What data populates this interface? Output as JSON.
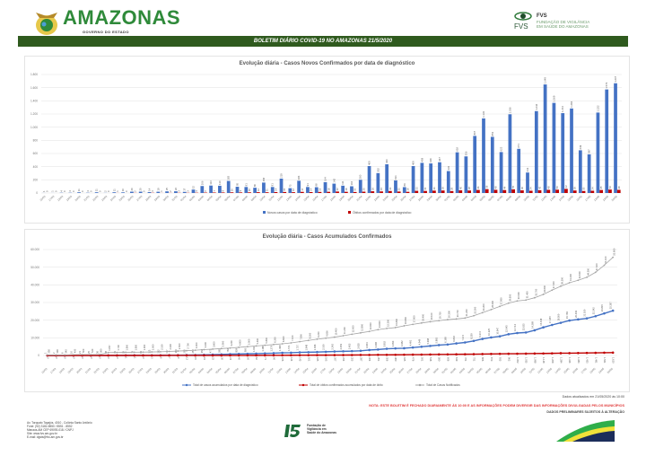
{
  "header": {
    "brand": "AMAZONAS",
    "brand_subtitle": "GOVERNO DO ESTADO",
    "fvs_name": "FVS",
    "fvs_line1": "FUNDAÇÃO DE VIGILÂNCIA",
    "fvs_line2": "EM SAÚDE DO AMAZONAS",
    "fvs_mark": "FVS",
    "banner": "BOLETIM DIÁRIO COVID-19 NO AMAZONAS 21/5/2020"
  },
  "colors": {
    "banner": "#2f5a1e",
    "cases": "#4472c4",
    "deaths": "#c00000",
    "notified": "#a5a5a5",
    "brand": "#2f8a3a",
    "note": "#e03a3a"
  },
  "chart_data": [
    {
      "type": "bar",
      "title": "Evolução diária - Casos Novos Confirmados por data de diagnóstico",
      "ylim": [
        0,
        1800
      ],
      "yticks": [
        0,
        200,
        400,
        600,
        800,
        1000,
        1200,
        1400,
        1600,
        1800
      ],
      "grid": true,
      "legend_position": "bottom",
      "categories": [
        "16/03",
        "17/03",
        "18/03",
        "19/03",
        "20/03",
        "21/03",
        "22/03",
        "23/03",
        "24/03",
        "25/03",
        "26/03",
        "27/03",
        "28/03",
        "29/03",
        "30/03",
        "31/03",
        "01/04",
        "02/04",
        "03/04",
        "04/04",
        "05/04",
        "06/04",
        "07/04",
        "08/04",
        "09/04",
        "10/04",
        "11/04",
        "12/04",
        "13/04",
        "14/04",
        "15/04",
        "16/04",
        "17/04",
        "18/04",
        "19/04",
        "20/04",
        "21/04",
        "22/04",
        "23/04",
        "24/04",
        "25/04",
        "26/04",
        "27/04",
        "28/04",
        "29/04",
        "30/04",
        "01/05",
        "02/05",
        "03/05",
        "04/05",
        "05/05",
        "06/05",
        "07/05",
        "08/05",
        "09/05",
        "10/05",
        "11/05",
        "12/05",
        "13/05",
        "14/05",
        "15/05",
        "16/05",
        "17/05",
        "18/05",
        "19/05",
        "20/05"
      ],
      "series": [
        {
          "name": "Novos casos por data de diagnóstico",
          "values": [
            1,
            1,
            4,
            4,
            11,
            4,
            11,
            2,
            11,
            10,
            20,
            20,
            14,
            19,
            25,
            26,
            17,
            52,
            106,
            113,
            110,
            183,
            95,
            91,
            80,
            158,
            91,
            219,
            73,
            186,
            91,
            88,
            164,
            142,
            111,
            102,
            200,
            409,
            302,
            436,
            191,
            89,
            409,
            458,
            449,
            467,
            333,
            618,
            556,
            867,
            1133,
            853,
            622,
            1196,
            671,
            311,
            1244,
            1649,
            1369,
            1213,
            1284,
            649,
            587,
            1222,
            1573,
            1667
          ]
        },
        {
          "name": "Óbitos confirmados por data de diagnóstico",
          "values": [
            0,
            0,
            0,
            0,
            0,
            0,
            0,
            0,
            1,
            0,
            2,
            0,
            3,
            1,
            2,
            3,
            3,
            4,
            6,
            7,
            8,
            10,
            9,
            10,
            12,
            11,
            14,
            15,
            12,
            17,
            14,
            16,
            18,
            22,
            18,
            15,
            20,
            26,
            24,
            30,
            22,
            18,
            33,
            31,
            36,
            38,
            29,
            40,
            38,
            46,
            58,
            48,
            44,
            55,
            40,
            34,
            42,
            48,
            50,
            62,
            38,
            30,
            34,
            45,
            52,
            48
          ]
        }
      ]
    },
    {
      "type": "line",
      "title": "Evolução diária - Casos Acumulados Confirmados",
      "ylim": [
        0,
        60000
      ],
      "yticks": [
        0,
        10000,
        20000,
        30000,
        40000,
        50000,
        60000
      ],
      "grid": true,
      "legend_position": "bottom",
      "categories_ref": "same as chart 1",
      "series": [
        {
          "name": "Total de casos acumulados por data de diagnóstico",
          "values": [
            1,
            2,
            6,
            10,
            21,
            25,
            36,
            38,
            49,
            59,
            79,
            99,
            113,
            132,
            157,
            183,
            200,
            252,
            358,
            471,
            581,
            764,
            859,
            950,
            1030,
            1188,
            1279,
            1498,
            1571,
            1757,
            1848,
            1936,
            2100,
            2242,
            2353,
            2455,
            2655,
            3064,
            3366,
            3802,
            3993,
            4082,
            4491,
            4949,
            5398,
            5865,
            6198,
            6816,
            7372,
            8239,
            9372,
            10225,
            10847,
            12043,
            12714,
            13025,
            14269,
            15918,
            17287,
            18500,
            19784,
            20433,
            21020,
            22242,
            23815,
            25367
          ]
        },
        {
          "name": "Total de óbitos confirmados acumulados por data de óbito",
          "values": [
            0,
            0,
            0,
            0,
            0,
            0,
            0,
            0,
            0,
            1,
            1,
            3,
            3,
            6,
            7,
            9,
            12,
            15,
            19,
            23,
            30,
            34,
            40,
            50,
            62,
            71,
            90,
            106,
            124,
            145,
            161,
            185,
            193,
            207,
            234,
            255,
            287,
            304,
            351,
            356,
            380,
            425,
            476,
            501,
            548,
            580,
            606,
            649,
            701,
            751,
            806,
            873,
            935,
            962,
            1002,
            1035,
            1098,
            1148,
            1208,
            1284,
            1326,
            1384,
            1433,
            1491,
            1561,
            1620
          ]
        },
        {
          "name": "Total de Casos Notificados",
          "values": [
            236,
            236,
            245,
            450,
            500,
            520,
            560,
            1657,
            1700,
            1800,
            1850,
            1900,
            2000,
            2100,
            2300,
            2500,
            2700,
            3000,
            3300,
            3600,
            3900,
            4200,
            4600,
            5000,
            5400,
            5800,
            6200,
            6600,
            7100,
            7800,
            8500,
            9200,
            9800,
            10400,
            11200,
            12000,
            12800,
            13600,
            14600,
            15300,
            15800,
            16800,
            17600,
            18400,
            19100,
            19700,
            20300,
            20700,
            21200,
            22500,
            24200,
            26000,
            27800,
            29600,
            30900,
            31400,
            32700,
            34600,
            37000,
            39200,
            41200,
            42600,
            44300,
            47100,
            51100,
            55600
          ]
        }
      ]
    }
  ],
  "footer": {
    "updated": "Dados atualizados em 21/05/2020 às 10:00",
    "note": "NOTA: ESTE BOLETIM É FECHADO DIARIAMENTE ÀS 10:00 E AS INFORMAÇÕES PODEM DIVERGIR DAS INFORMAÇÕES DIVULGADAS PELOS MUNICÍPIOS",
    "preliminary": "DADOS PRELIMINARES SUJEITOS À ALTERAÇÃO",
    "address": [
      "Av. Torquato Tapajós, 4010 - Colônia Santo Antônio",
      "Fone: (92) 3182-8550 / 8551 - 8552",
      "Manaus-AM CEP 69093-018 / CNPJ",
      "Site: www.fvs.am.gov.br",
      "E-mail: dgsts@fvs.am.gov.br"
    ],
    "fvs15_lines": [
      "Fundação de",
      "Vigilância em",
      "Saúde do Amazonas"
    ]
  }
}
